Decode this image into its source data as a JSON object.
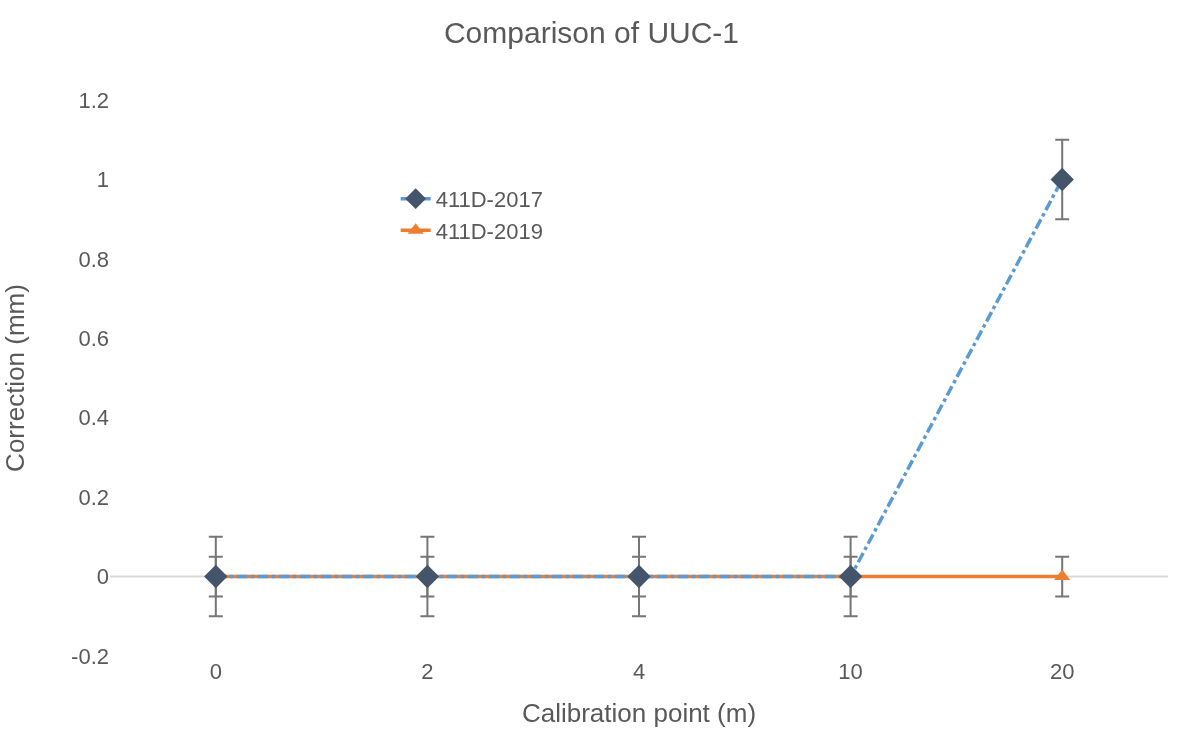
{
  "chart_data": {
    "type": "line",
    "title": "Comparison of UUC-1",
    "xlabel": "Calibration point (m)",
    "ylabel": "Correction (mm)",
    "categories": [
      "0",
      "2",
      "4",
      "10",
      "20"
    ],
    "series": [
      {
        "name": "411D-2017",
        "color": "#5b9bd5",
        "colors": [
          "#44546a",
          "#44546a",
          "#44546a",
          "#44546a",
          "#44546a"
        ],
        "marker": "diamond",
        "line_style": "dashdot",
        "values": [
          0,
          0,
          0,
          0,
          1
        ],
        "errors": [
          0.1,
          0.1,
          0.1,
          0.1,
          0.1
        ]
      },
      {
        "name": "411D-2019",
        "color": "#ed7d31",
        "marker": "triangle",
        "line_style": "solid",
        "values": [
          0,
          0,
          0,
          0,
          0
        ],
        "errors": [
          0.05,
          0.05,
          0.05,
          0.05,
          0.05
        ]
      }
    ],
    "ylim": [
      -0.2,
      1.2
    ],
    "yticks": [
      -0.2,
      0,
      0.2,
      0.4,
      0.6,
      0.8,
      1,
      1.2
    ],
    "grid": false,
    "legend": "top left",
    "ref_lines": [
      {
        "axis": "y",
        "value": 0,
        "color": "#d9d9d9"
      }
    ]
  }
}
